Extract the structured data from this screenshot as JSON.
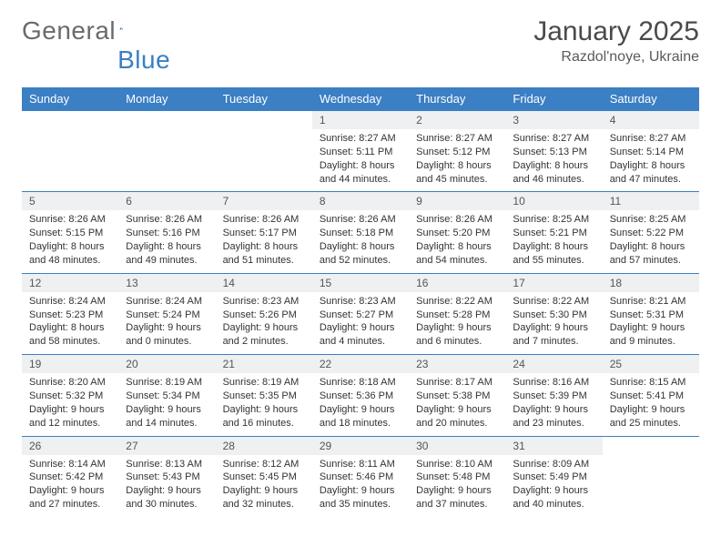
{
  "logo": {
    "word1": "General",
    "word2": "Blue"
  },
  "header": {
    "month": "January 2025",
    "location": "Razdol'noye, Ukraine"
  },
  "colors": {
    "header_bg": "#3b7fc4",
    "header_text": "#ffffff",
    "daynum_bg": "#eef0f2",
    "border": "#3b7fc4",
    "body_text": "#333333",
    "title_text": "#4a4a4a"
  },
  "fonts": {
    "body_size": 11,
    "daynum_size": 12,
    "header_size": 13,
    "title_size": 30,
    "location_size": 16
  },
  "dayNames": [
    "Sunday",
    "Monday",
    "Tuesday",
    "Wednesday",
    "Thursday",
    "Friday",
    "Saturday"
  ],
  "weeks": [
    [
      null,
      null,
      null,
      {
        "n": "1",
        "sr": "8:27 AM",
        "ss": "5:11 PM",
        "dl": "8 hours and 44 minutes."
      },
      {
        "n": "2",
        "sr": "8:27 AM",
        "ss": "5:12 PM",
        "dl": "8 hours and 45 minutes."
      },
      {
        "n": "3",
        "sr": "8:27 AM",
        "ss": "5:13 PM",
        "dl": "8 hours and 46 minutes."
      },
      {
        "n": "4",
        "sr": "8:27 AM",
        "ss": "5:14 PM",
        "dl": "8 hours and 47 minutes."
      }
    ],
    [
      {
        "n": "5",
        "sr": "8:26 AM",
        "ss": "5:15 PM",
        "dl": "8 hours and 48 minutes."
      },
      {
        "n": "6",
        "sr": "8:26 AM",
        "ss": "5:16 PM",
        "dl": "8 hours and 49 minutes."
      },
      {
        "n": "7",
        "sr": "8:26 AM",
        "ss": "5:17 PM",
        "dl": "8 hours and 51 minutes."
      },
      {
        "n": "8",
        "sr": "8:26 AM",
        "ss": "5:18 PM",
        "dl": "8 hours and 52 minutes."
      },
      {
        "n": "9",
        "sr": "8:26 AM",
        "ss": "5:20 PM",
        "dl": "8 hours and 54 minutes."
      },
      {
        "n": "10",
        "sr": "8:25 AM",
        "ss": "5:21 PM",
        "dl": "8 hours and 55 minutes."
      },
      {
        "n": "11",
        "sr": "8:25 AM",
        "ss": "5:22 PM",
        "dl": "8 hours and 57 minutes."
      }
    ],
    [
      {
        "n": "12",
        "sr": "8:24 AM",
        "ss": "5:23 PM",
        "dl": "8 hours and 58 minutes."
      },
      {
        "n": "13",
        "sr": "8:24 AM",
        "ss": "5:24 PM",
        "dl": "9 hours and 0 minutes."
      },
      {
        "n": "14",
        "sr": "8:23 AM",
        "ss": "5:26 PM",
        "dl": "9 hours and 2 minutes."
      },
      {
        "n": "15",
        "sr": "8:23 AM",
        "ss": "5:27 PM",
        "dl": "9 hours and 4 minutes."
      },
      {
        "n": "16",
        "sr": "8:22 AM",
        "ss": "5:28 PM",
        "dl": "9 hours and 6 minutes."
      },
      {
        "n": "17",
        "sr": "8:22 AM",
        "ss": "5:30 PM",
        "dl": "9 hours and 7 minutes."
      },
      {
        "n": "18",
        "sr": "8:21 AM",
        "ss": "5:31 PM",
        "dl": "9 hours and 9 minutes."
      }
    ],
    [
      {
        "n": "19",
        "sr": "8:20 AM",
        "ss": "5:32 PM",
        "dl": "9 hours and 12 minutes."
      },
      {
        "n": "20",
        "sr": "8:19 AM",
        "ss": "5:34 PM",
        "dl": "9 hours and 14 minutes."
      },
      {
        "n": "21",
        "sr": "8:19 AM",
        "ss": "5:35 PM",
        "dl": "9 hours and 16 minutes."
      },
      {
        "n": "22",
        "sr": "8:18 AM",
        "ss": "5:36 PM",
        "dl": "9 hours and 18 minutes."
      },
      {
        "n": "23",
        "sr": "8:17 AM",
        "ss": "5:38 PM",
        "dl": "9 hours and 20 minutes."
      },
      {
        "n": "24",
        "sr": "8:16 AM",
        "ss": "5:39 PM",
        "dl": "9 hours and 23 minutes."
      },
      {
        "n": "25",
        "sr": "8:15 AM",
        "ss": "5:41 PM",
        "dl": "9 hours and 25 minutes."
      }
    ],
    [
      {
        "n": "26",
        "sr": "8:14 AM",
        "ss": "5:42 PM",
        "dl": "9 hours and 27 minutes."
      },
      {
        "n": "27",
        "sr": "8:13 AM",
        "ss": "5:43 PM",
        "dl": "9 hours and 30 minutes."
      },
      {
        "n": "28",
        "sr": "8:12 AM",
        "ss": "5:45 PM",
        "dl": "9 hours and 32 minutes."
      },
      {
        "n": "29",
        "sr": "8:11 AM",
        "ss": "5:46 PM",
        "dl": "9 hours and 35 minutes."
      },
      {
        "n": "30",
        "sr": "8:10 AM",
        "ss": "5:48 PM",
        "dl": "9 hours and 37 minutes."
      },
      {
        "n": "31",
        "sr": "8:09 AM",
        "ss": "5:49 PM",
        "dl": "9 hours and 40 minutes."
      },
      null
    ]
  ],
  "labels": {
    "sunrise": "Sunrise:",
    "sunset": "Sunset:",
    "daylight": "Daylight:"
  }
}
